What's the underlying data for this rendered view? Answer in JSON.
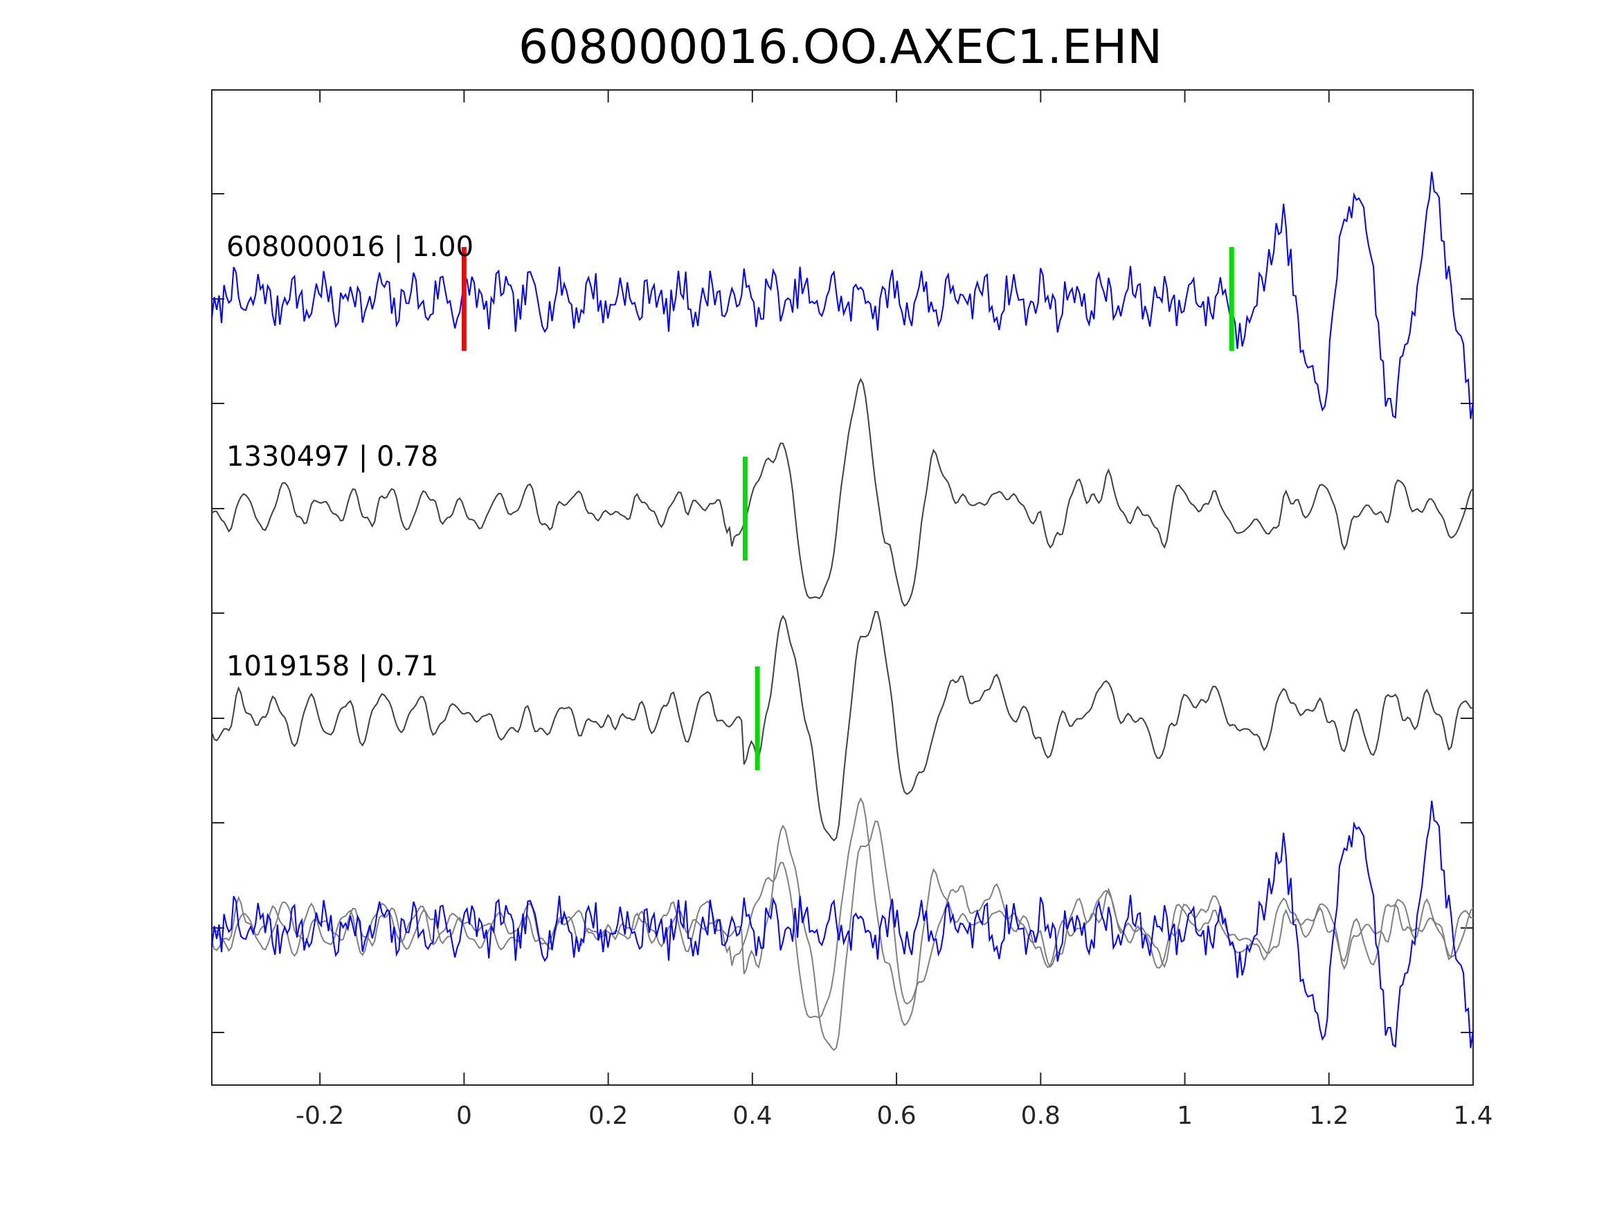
{
  "chart_data": {
    "type": "line",
    "title": "608000016.OO.AXEC1.EHN",
    "xlabel": "",
    "ylabel": "",
    "xlim": [
      -0.35,
      1.4
    ],
    "x_ticks": [
      "-0.2",
      "0",
      "0.2",
      "0.4",
      "0.6",
      "0.8",
      "1",
      "1.2",
      "1.4"
    ],
    "x_tick_values": [
      -0.2,
      0,
      0.2,
      0.4,
      0.6,
      0.8,
      1.0,
      1.2,
      1.4
    ],
    "grid": false,
    "legend": "none",
    "traces": [
      {
        "name": "608000016 | 1.00",
        "color": "#0000ff",
        "picks": [
          {
            "time": 0.0,
            "color": "#ff0000"
          },
          {
            "time": 1.065,
            "color": "#00dd00"
          }
        ]
      },
      {
        "name": "1330497 | 0.78",
        "color": "#404040",
        "picks": [
          {
            "time": 0.39,
            "color": "#00dd00"
          }
        ]
      },
      {
        "name": "1019158 | 0.71",
        "color": "#404040",
        "picks": [
          {
            "time": 0.407,
            "color": "#00dd00"
          }
        ]
      }
    ],
    "overlay": {
      "colors": [
        "#0000ff",
        "#808080",
        "#808080"
      ]
    }
  }
}
